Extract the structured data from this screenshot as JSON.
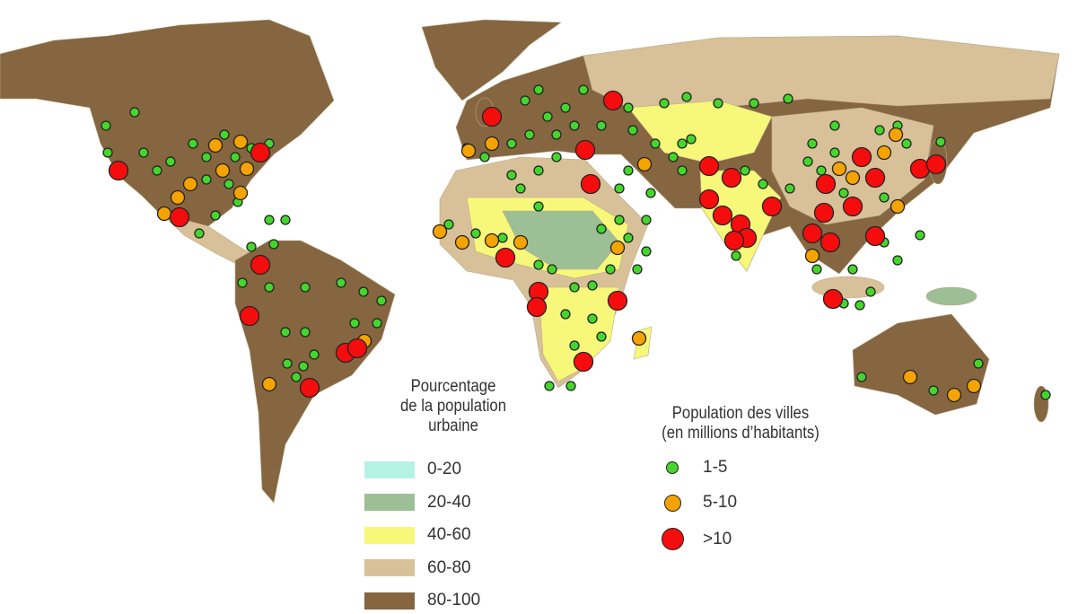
{
  "urban_legend": {
    "title_lines": [
      "Pourcentage",
      "de la population",
      "urbaine"
    ],
    "classes": [
      {
        "label": "0-20",
        "color": "#b4f3e4"
      },
      {
        "label": "20-40",
        "color": "#9dbf95"
      },
      {
        "label": "40-60",
        "color": "#f7f77a"
      },
      {
        "label": "60-80",
        "color": "#d8c199"
      },
      {
        "label": "80-100",
        "color": "#856640"
      }
    ]
  },
  "city_legend": {
    "title_lines": [
      "Population des villes",
      "(en millions d’habitants)"
    ],
    "classes": [
      {
        "label": "1-5",
        "color": "#44d62c",
        "size": "small"
      },
      {
        "label": "5-10",
        "color": "#f5a300",
        "size": "medium"
      },
      {
        "label": ">10",
        "color": "#f50d0d",
        "size": "large"
      }
    ]
  },
  "colors": {
    "ocean": "#ffffff",
    "land_default": "#856640",
    "border": "#b9a989"
  }
}
